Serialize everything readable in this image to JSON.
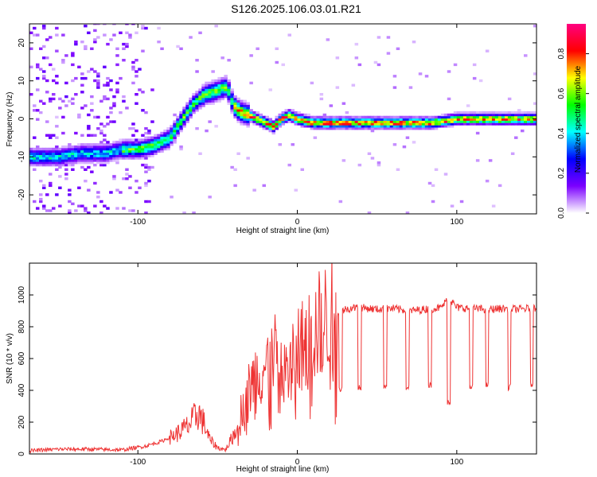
{
  "figure": {
    "title": "S126.2025.106.03.01.R21"
  },
  "chart_data": [
    {
      "type": "heatmap",
      "xlabel": "Height of straight line (km)",
      "ylabel": "Frequency (Hz)",
      "xlim": [
        -168,
        150
      ],
      "ylim": [
        -25,
        25
      ],
      "xticks": [
        -100,
        0,
        100
      ],
      "yticks": [
        -20,
        -10,
        0,
        10,
        20
      ],
      "grid": false,
      "colorbar": {
        "label": "Normalized spectral amplitude",
        "range": [
          0.0,
          0.95
        ],
        "ticks": [
          "0.0",
          "0.2",
          "0.4",
          "0.6",
          "0.8"
        ],
        "colormap": [
          "#ffffff",
          "#7b00ff",
          "#0000ff",
          "#00ffff",
          "#00ff00",
          "#ffff00",
          "#ff0000",
          "#ff0080"
        ]
      },
      "ridge": {
        "x": [
          -162,
          -150,
          -135,
          -120,
          -110,
          -100,
          -90,
          -80,
          -72,
          -65,
          -58,
          -50,
          -44,
          -40,
          -36,
          -30,
          -25,
          -20,
          -15,
          -10,
          -5,
          0,
          10,
          30,
          60,
          85,
          100,
          120,
          148
        ],
        "y": [
          -10,
          -10,
          -9,
          -9,
          -8,
          -8,
          -7,
          -5,
          0,
          4,
          6.5,
          7.5,
          8.5,
          3.5,
          2,
          1,
          0,
          -1,
          -2,
          0,
          1,
          0,
          -1,
          -1,
          -1,
          -1,
          0,
          0,
          0
        ]
      }
    },
    {
      "type": "line",
      "xlabel": "Height of straight line (km)",
      "ylabel": "SNR (10 * v/v)",
      "xlim": [
        -168,
        150
      ],
      "ylim": [
        0,
        1200
      ],
      "xticks": [
        -100,
        0,
        100
      ],
      "yticks": [
        0,
        200,
        400,
        600,
        800,
        1000
      ],
      "grid": false,
      "color": "#ee3333",
      "series": [
        {
          "x": [
            -168,
            -150,
            -130,
            -110,
            -95,
            -85,
            -75,
            -68,
            -62,
            -58,
            -55,
            -50,
            -45,
            -40,
            -35,
            -30,
            -25,
            -20,
            -15,
            -10,
            -5,
            0,
            5,
            10,
            15,
            20,
            25,
            30,
            35,
            40,
            50,
            60,
            70,
            80,
            90,
            95,
            100,
            110,
            120,
            130,
            140,
            150
          ],
          "y": [
            20,
            30,
            30,
            25,
            50,
            80,
            130,
            180,
            260,
            180,
            90,
            40,
            25,
            120,
            280,
            420,
            500,
            550,
            620,
            580,
            550,
            650,
            700,
            760,
            820,
            860,
            880,
            910,
            920,
            920,
            910,
            915,
            900,
            910,
            920,
            980,
            920,
            915,
            910,
            915,
            910,
            920
          ]
        }
      ],
      "dropouts": [
        {
          "x_start": 26,
          "x_end": 28,
          "y": 410
        },
        {
          "x_start": 38,
          "x_end": 40,
          "y": 420
        },
        {
          "x_start": 54,
          "x_end": 56,
          "y": 430
        },
        {
          "x_start": 68,
          "x_end": 70,
          "y": 420
        },
        {
          "x_start": 82,
          "x_end": 84,
          "y": 430
        },
        {
          "x_start": 94,
          "x_end": 96,
          "y": 330
        },
        {
          "x_start": 108,
          "x_end": 110,
          "y": 420
        },
        {
          "x_start": 118,
          "x_end": 120,
          "y": 430
        },
        {
          "x_start": 132,
          "x_end": 134,
          "y": 420
        },
        {
          "x_start": 146,
          "x_end": 148,
          "y": 430
        }
      ]
    }
  ]
}
